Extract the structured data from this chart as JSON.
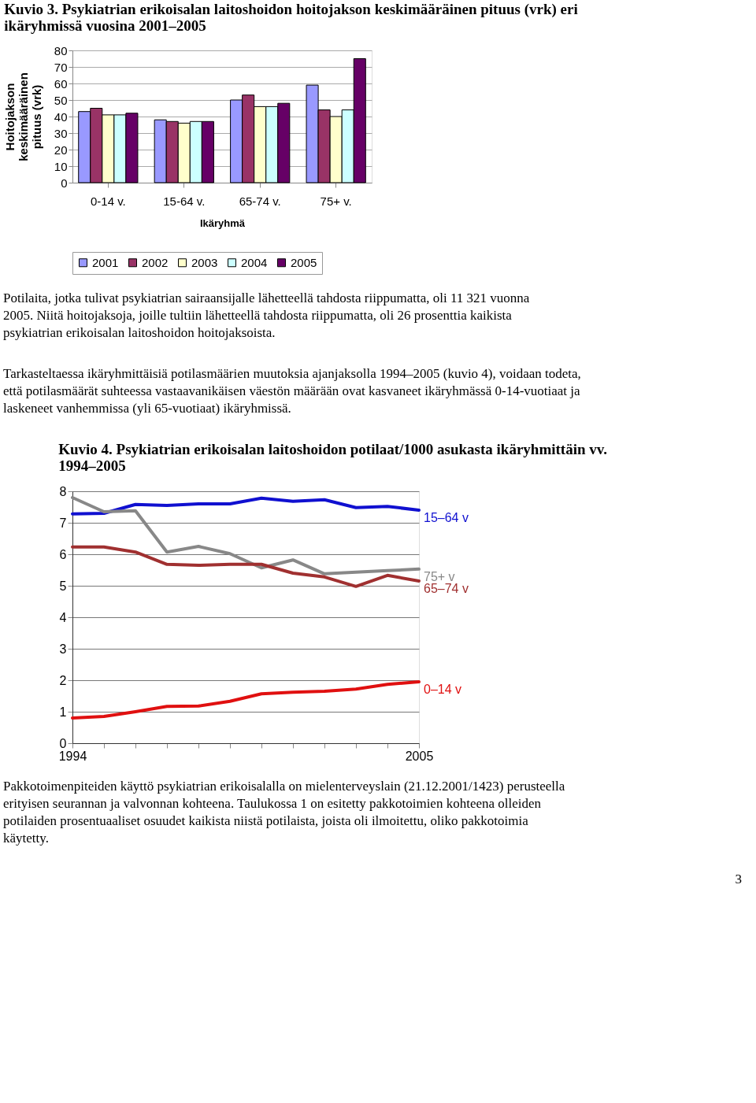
{
  "chart_data": [
    {
      "type": "bar",
      "title": "Kuvio 3. Psykiatrian erikoisalan laitoshoidon hoitojakson keskimääräinen pituus (vrk) eri ikäryhmissä vuosina 2001–2005",
      "xlabel": "Ikäryhmä",
      "ylabel": "Hoitojakson keskimääräinen pituus (vrk)",
      "categories": [
        "0-14 v.",
        "15-64 v.",
        "65-74 v.",
        "75+ v."
      ],
      "series": [
        {
          "name": "2001",
          "color": "#9999ff",
          "values": [
            43,
            38,
            50,
            59
          ]
        },
        {
          "name": "2002",
          "color": "#993366",
          "values": [
            45,
            37,
            53,
            44
          ]
        },
        {
          "name": "2003",
          "color": "#ffffcc",
          "values": [
            41,
            36,
            46,
            40
          ]
        },
        {
          "name": "2004",
          "color": "#ccffff",
          "values": [
            41,
            37,
            46,
            44
          ]
        },
        {
          "name": "2005",
          "color": "#660066",
          "values": [
            42,
            37,
            48,
            75
          ]
        }
      ],
      "ylim": [
        0,
        80
      ],
      "yticks": [
        0,
        10,
        20,
        30,
        40,
        50,
        60,
        70,
        80
      ],
      "grid": "y",
      "legend": "bottom",
      "annotations": [
        "Potilaita, jotka tulivat psykiatrian sairaansijalle lähetteellä tahdosta riippumatta, oli 11 321 vuonna 2005. Niitä hoitojaksoja, joille tultiin lähetteellä tahdosta riippumatta, oli 26 prosenttia kaikista psykiatrian erikoisalan laitoshoidon hoitojaksoista.",
        "Tarkasteltaessa ikäryhmittäisiä potilasmäärien muutoksia ajanjaksolla 1994–2005 (kuvio 4), voidaan todeta, että potilasmäärät suhteessa vastaavanikäisen väestön määrään ovat kasvaneet ikäryhmässä 0-14-vuotiaat ja laskeneet vanhemmissa (yli 65-vuotiaat) ikäryhmissä."
      ]
    },
    {
      "type": "line",
      "title": "Kuvio 4. Psykiatrian erikoisalan laitoshoidon potilaat/1000 asukasta ikäryhmittäin vv. 1994–2005",
      "x": [
        1994,
        1995,
        1996,
        1997,
        1998,
        1999,
        2000,
        2001,
        2002,
        2003,
        2004,
        2005
      ],
      "series": [
        {
          "name": "15–64 v",
          "color": "#1010d0",
          "values": [
            7.28,
            7.3,
            7.58,
            7.55,
            7.6,
            7.6,
            7.78,
            7.68,
            7.73,
            7.48,
            7.52,
            7.4
          ]
        },
        {
          "name": "75+ v",
          "color": "#888888",
          "values": [
            7.8,
            7.35,
            7.38,
            6.07,
            6.25,
            6.02,
            5.57,
            5.82,
            5.38,
            5.43,
            5.48,
            5.53
          ]
        },
        {
          "name": "65–74 v",
          "color": "#a03030",
          "values": [
            6.23,
            6.23,
            6.07,
            5.68,
            5.65,
            5.68,
            5.68,
            5.4,
            5.28,
            4.98,
            5.33,
            5.15
          ]
        },
        {
          "name": "0–14 v",
          "color": "#e01010",
          "values": [
            0.8,
            0.85,
            1.0,
            1.17,
            1.18,
            1.33,
            1.57,
            1.62,
            1.65,
            1.72,
            1.87,
            1.95
          ]
        }
      ],
      "xlim": [
        1994,
        2005
      ],
      "xticks": [
        1994,
        {
          "value": 1995,
          "label": null
        },
        {
          "value": 1996,
          "label": null
        },
        {
          "value": 1997,
          "label": null
        },
        {
          "value": 1998,
          "label": null
        },
        {
          "value": 1999,
          "label": null
        },
        {
          "value": 2000,
          "label": null
        },
        {
          "value": 2001,
          "label": null
        },
        {
          "value": 2002,
          "label": null
        },
        {
          "value": 2003,
          "label": null
        },
        {
          "value": 2004,
          "label": null
        },
        2005
      ],
      "ylim": [
        0,
        8
      ],
      "yticks": [
        0,
        1,
        2,
        3,
        4,
        5,
        6,
        7,
        8
      ],
      "grid": "y",
      "legend": false,
      "line_style": "solid",
      "marker": "none",
      "annotations": [
        "Pakkotoimenpiteiden käyttö psykiatrian erikoisalalla on mielenterveyslain (21.12.2001/1423) perusteella erityisen seurannan ja valvonnan kohteena. Taulukossa 1 on esitetty pakkotoimien kohteena olleiden potilaiden prosentuaaliset osuudet kaikista niistä potilaista, joista oli ilmoitettu, oliko pakkotoimia käytetty.",
        "3"
      ]
    }
  ]
}
